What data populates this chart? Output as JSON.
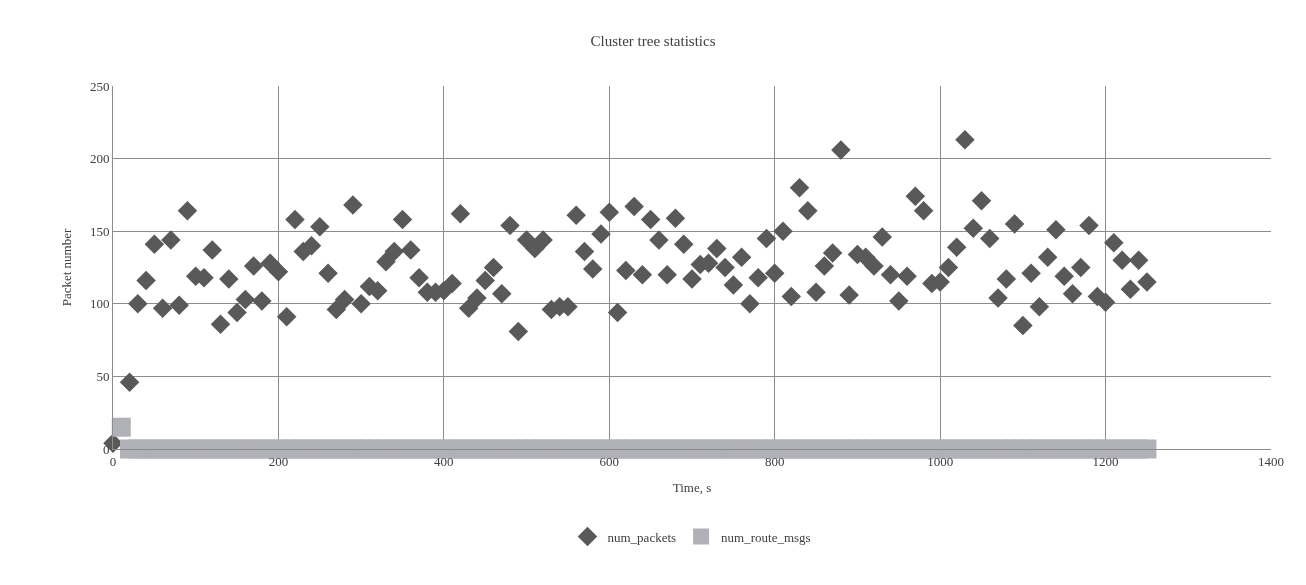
{
  "chart_data": {
    "type": "scatter",
    "title": "Cluster tree statistics",
    "xlabel": "Time, s",
    "ylabel": "Packet number",
    "x": [
      0,
      10,
      20,
      30,
      40,
      50,
      60,
      70,
      80,
      90,
      100,
      110,
      120,
      130,
      140,
      150,
      160,
      170,
      180,
      190,
      200,
      210,
      220,
      230,
      240,
      250,
      260,
      270,
      280,
      290,
      300,
      310,
      320,
      330,
      340,
      350,
      360,
      370,
      380,
      390,
      400,
      410,
      420,
      430,
      440,
      450,
      460,
      470,
      480,
      490,
      500,
      510,
      520,
      530,
      540,
      550,
      560,
      570,
      580,
      590,
      600,
      610,
      620,
      630,
      640,
      650,
      660,
      670,
      680,
      690,
      700,
      710,
      720,
      730,
      740,
      750,
      760,
      770,
      780,
      790,
      800,
      810,
      820,
      830,
      840,
      850,
      860,
      870,
      880,
      890,
      900,
      910,
      920,
      930,
      940,
      950,
      960,
      970,
      980,
      990,
      1000,
      1010,
      1020,
      1030,
      1040,
      1050,
      1060,
      1070,
      1080,
      1090,
      1100,
      1110,
      1120,
      1130,
      1140,
      1150,
      1160,
      1170,
      1180,
      1190,
      1200,
      1210,
      1220,
      1230,
      1240,
      1250
    ],
    "series": [
      {
        "name": "num_packets",
        "color": "#595959",
        "marker": "diamond",
        "values": [
          4,
          null,
          46,
          100,
          116,
          141,
          97,
          144,
          99,
          164,
          119,
          118,
          137,
          86,
          117,
          94,
          103,
          126,
          102,
          128,
          122,
          91,
          158,
          136,
          140,
          153,
          121,
          96,
          103,
          168,
          100,
          112,
          109,
          129,
          136,
          158,
          137,
          118,
          108,
          108,
          109,
          114,
          162,
          97,
          104,
          116,
          125,
          107,
          154,
          81,
          144,
          138,
          144,
          96,
          98,
          98,
          161,
          136,
          124,
          148,
          163,
          94,
          123,
          167,
          120,
          158,
          144,
          120,
          159,
          141,
          117,
          127,
          128,
          138,
          125,
          113,
          132,
          100,
          118,
          145,
          121,
          150,
          105,
          180,
          164,
          108,
          126,
          135,
          206,
          106,
          134,
          132,
          126,
          146,
          120,
          102,
          119,
          174,
          164,
          114,
          115,
          125,
          139,
          213,
          152,
          171,
          145,
          104,
          117,
          155,
          85,
          121,
          98,
          132,
          151,
          119,
          107,
          125,
          154,
          105,
          101,
          142,
          130,
          110,
          130,
          115
        ]
      },
      {
        "name": "num_route_msgs",
        "color": "#b0b1b6",
        "marker": "square",
        "values": [
          null,
          15,
          0,
          0,
          0,
          0,
          0,
          0,
          0,
          0,
          0,
          0,
          0,
          0,
          0,
          0,
          0,
          0,
          0,
          0,
          0,
          0,
          0,
          0,
          0,
          0,
          0,
          0,
          0,
          0,
          0,
          0,
          0,
          0,
          0,
          0,
          0,
          0,
          0,
          0,
          0,
          0,
          0,
          0,
          0,
          0,
          0,
          0,
          0,
          0,
          0,
          0,
          0,
          0,
          0,
          0,
          0,
          0,
          0,
          0,
          0,
          0,
          0,
          0,
          0,
          0,
          0,
          0,
          0,
          0,
          0,
          0,
          0,
          0,
          0,
          0,
          0,
          0,
          0,
          0,
          0,
          0,
          0,
          0,
          0,
          0,
          0,
          0,
          0,
          0,
          0,
          0,
          0,
          0,
          0,
          0,
          0,
          0,
          0,
          0,
          0,
          0,
          0,
          0,
          0,
          0,
          0,
          0,
          0,
          0,
          0,
          0,
          0,
          0,
          0,
          0,
          0,
          0,
          0,
          0,
          0,
          0,
          0,
          0,
          0,
          0
        ]
      }
    ],
    "xlim": [
      0,
      1400
    ],
    "xticks": [
      0,
      200,
      400,
      600,
      800,
      1000,
      1200,
      1400
    ],
    "ylim": [
      0,
      250
    ],
    "yticks": [
      0,
      50,
      100,
      150,
      200,
      250
    ],
    "grid": true,
    "legend": "bottom"
  }
}
